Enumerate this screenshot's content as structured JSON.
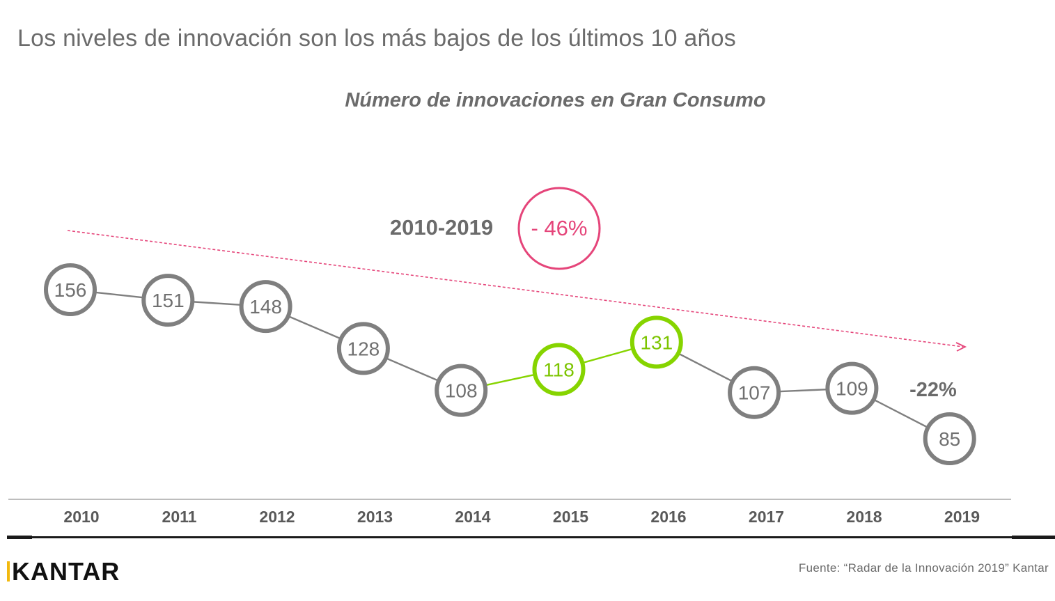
{
  "slide": {
    "title": "Los niveles de innovación son los más bajos de los últimos 10 años",
    "source": "Fuente: “Radar de la Innovación 2019” Kantar",
    "logo_text": "KANTAR"
  },
  "chart_data": {
    "type": "line",
    "title": "Número de innovaciones en Gran Consumo",
    "categories": [
      "2010",
      "2011",
      "2012",
      "2013",
      "2014",
      "2015",
      "2016",
      "2017",
      "2018",
      "2019"
    ],
    "values": [
      156,
      151,
      148,
      128,
      108,
      118,
      131,
      107,
      109,
      85
    ],
    "highlighted_categories": [
      "2015",
      "2016"
    ],
    "annotations": {
      "period_label": "2010-2019",
      "period_change": "- 46%",
      "last_change": "-22%"
    },
    "trend_arrow": "dashed, downward from 2010 to 2019",
    "grid": false,
    "colors": {
      "normal": "#7f7f7f",
      "highlight": "#86d400",
      "trend": "#e5457a",
      "label": "#6b6b6b",
      "axis_text": "#595959"
    }
  }
}
